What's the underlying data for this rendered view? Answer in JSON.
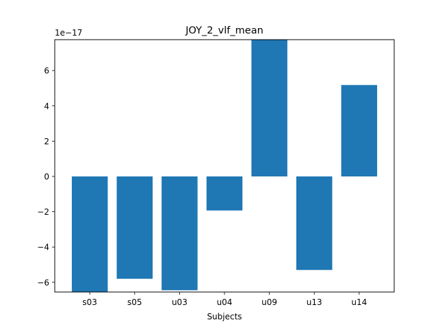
{
  "chart_data": {
    "type": "bar",
    "title": "JOY_2_vlf_mean",
    "xlabel": "Subjects",
    "ylabel": "",
    "scale_note": "1e−17",
    "categories": [
      "s03",
      "s05",
      "u03",
      "u04",
      "u09",
      "u13",
      "u14"
    ],
    "values": [
      -6.55,
      -5.8,
      -6.45,
      -1.93,
      7.75,
      -5.3,
      5.18
    ],
    "ylim": [
      -6.55,
      7.75
    ],
    "yticks": [
      -6,
      -4,
      -2,
      0,
      2,
      4,
      6
    ],
    "ytick_labels": [
      "−6",
      "−4",
      "−2",
      "0",
      "2",
      "4",
      "6"
    ],
    "grid": false,
    "legend": "none",
    "bar_color": "#1f77b4"
  }
}
